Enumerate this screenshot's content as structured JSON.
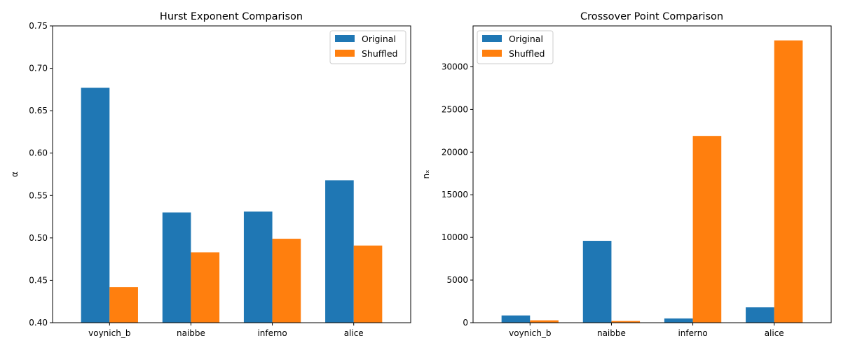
{
  "colors": {
    "original": "#1f77b4",
    "shuffled": "#ff7f0e"
  },
  "chart_data": [
    {
      "type": "bar",
      "title": "Hurst Exponent Comparison",
      "xlabel": "",
      "ylabel": "α",
      "categories": [
        "voynich_b",
        "naibbe",
        "inferno",
        "alice"
      ],
      "series": [
        {
          "name": "Original",
          "values": [
            0.677,
            0.53,
            0.531,
            0.568
          ]
        },
        {
          "name": "Shuffled",
          "values": [
            0.442,
            0.483,
            0.499,
            0.491
          ]
        }
      ],
      "ylim": [
        0.4,
        0.75
      ],
      "yticks": [
        0.4,
        0.45,
        0.5,
        0.55,
        0.6,
        0.65,
        0.7,
        0.75
      ],
      "ytick_labels": [
        "0.40",
        "0.45",
        "0.50",
        "0.55",
        "0.60",
        "0.65",
        "0.70",
        "0.75"
      ],
      "legend_position": "upper right",
      "grid": false
    },
    {
      "type": "bar",
      "title": "Crossover Point Comparison",
      "xlabel": "",
      "ylabel": "nₓ",
      "categories": [
        "voynich_b",
        "naibbe",
        "inferno",
        "alice"
      ],
      "series": [
        {
          "name": "Original",
          "values": [
            850,
            9600,
            500,
            1800
          ]
        },
        {
          "name": "Shuffled",
          "values": [
            280,
            200,
            21900,
            33100
          ]
        }
      ],
      "ylim": [
        0,
        34800
      ],
      "yticks": [
        0,
        5000,
        10000,
        15000,
        20000,
        25000,
        30000
      ],
      "ytick_labels": [
        "0",
        "5000",
        "10000",
        "15000",
        "20000",
        "25000",
        "30000"
      ],
      "legend_position": "upper left",
      "grid": false
    }
  ]
}
